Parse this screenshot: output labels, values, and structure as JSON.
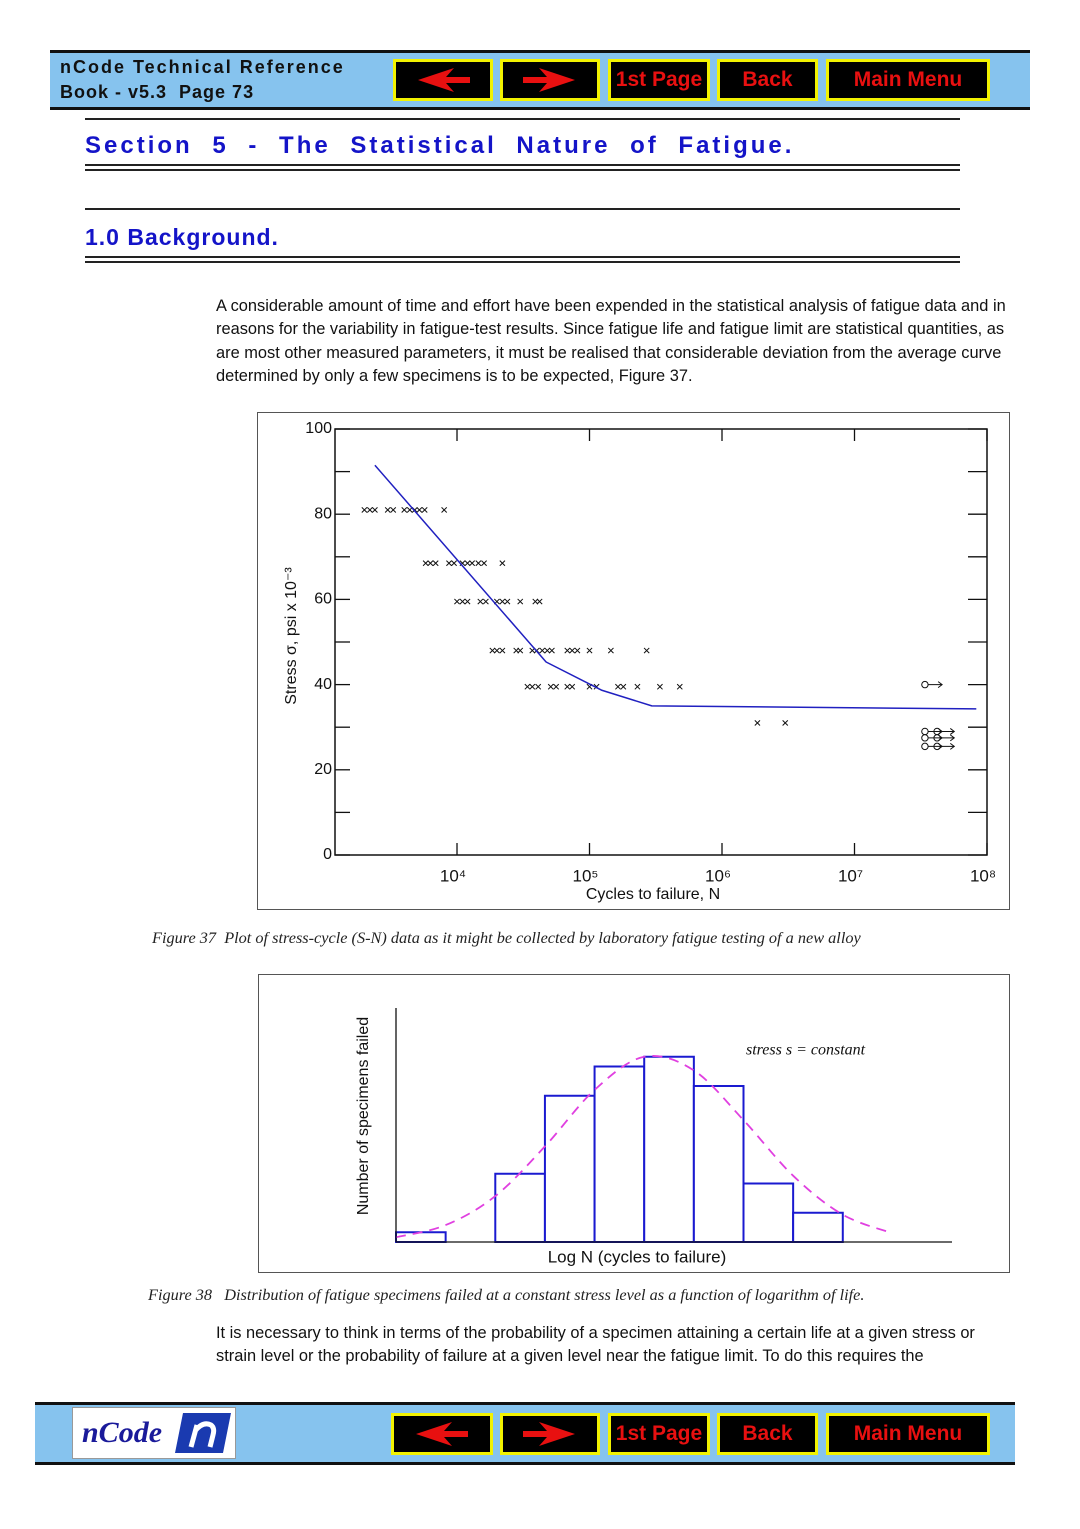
{
  "header": {
    "title": "nCode Technical Reference",
    "subtitle": "Book - v5.3  Page 73",
    "buttons": [
      "1st Page",
      "Back",
      "Main Menu"
    ]
  },
  "section_title": "Section 5 - The Statistical Nature of Fatigue.",
  "subsection_title": "1.0 Background.",
  "paragraphs": [
    "A considerable amount of time and effort have been expended in the statistical analysis of fatigue data and in reasons for the variability in fatigue-test results. Since fatigue life and fatigue limit are statistical quantities, as are most other measured parameters, it must be realised that considerable deviation from the average curve determined by only a few specimens is to be expected, Figure 37.",
    "It is necessary to think in terms of the probability of a specimen attaining a certain life at a given stress or strain level or the probability of failure at a given level near the fatigue limit. To do this requires the"
  ],
  "figures": [
    {
      "caption": "Figure 37  Plot of stress-cycle (S-N) data as it might be collected by laboratory fatigue testing of a new alloy"
    },
    {
      "caption": "Figure 38   Distribution of fatigue specimens failed at a constant stress level as a function of logarithm of life."
    }
  ],
  "footer": {
    "logo": "nCode",
    "buttons": [
      "1st Page",
      "Back",
      "Main Menu"
    ]
  },
  "chart_data": [
    {
      "type": "scatter",
      "x_label": "Cycles to failure, N",
      "y_label": "Stress σ, psi x 10⁻³",
      "xscale": "log",
      "xlim": [
        1200,
        100000000
      ],
      "ylim": [
        0,
        100
      ],
      "xticks": [
        {
          "value": 10000,
          "label": "10⁴"
        },
        {
          "value": 100000,
          "label": "10⁵"
        },
        {
          "value": 1000000,
          "label": "10⁶"
        },
        {
          "value": 10000000,
          "label": "10⁷"
        },
        {
          "value": 100000000,
          "label": "10⁸"
        }
      ],
      "yticks": [
        0,
        20,
        40,
        60,
        80,
        100
      ],
      "yminor": [
        10,
        30,
        50,
        70,
        90
      ],
      "series": [
        {
          "marker": "x",
          "color": "#111111",
          "x": [
            2000,
            2200,
            2400,
            3000,
            3300,
            4000,
            4400,
            4800,
            5200,
            5700,
            8000
          ],
          "values": [
            81,
            81,
            81,
            81,
            81,
            81,
            81,
            81,
            81,
            81,
            81
          ]
        },
        {
          "marker": "x",
          "color": "#111111",
          "x": [
            5800,
            6300,
            6900,
            8700,
            9500,
            11000,
            12000,
            13000,
            14500,
            16000,
            22000
          ],
          "values": [
            68.5,
            68.5,
            68.5,
            68.5,
            68.5,
            68.5,
            68.5,
            68.5,
            68.5,
            68.5,
            68.5
          ]
        },
        {
          "marker": "x",
          "color": "#111111",
          "x": [
            10000,
            11000,
            12000,
            15000,
            16500,
            20000,
            22000,
            24000,
            30000,
            39000,
            42000
          ],
          "values": [
            59.5,
            59.5,
            59.5,
            59.5,
            59.5,
            59.5,
            59.5,
            59.5,
            59.5,
            59.5,
            59.5
          ]
        },
        {
          "marker": "x",
          "color": "#111111",
          "x": [
            18500,
            20000,
            22000,
            28000,
            30000,
            37000,
            40000,
            44000,
            48000,
            52000,
            68000,
            74000,
            81000,
            100000,
            145000,
            270000
          ],
          "values": [
            48,
            48,
            48,
            48,
            48,
            48,
            48,
            48,
            48,
            48,
            48,
            48,
            48,
            48,
            48,
            48
          ]
        },
        {
          "marker": "x",
          "color": "#111111",
          "x": [
            34000,
            37000,
            41000,
            51000,
            56000,
            68000,
            74000,
            100000,
            113000,
            164000,
            180000,
            230000,
            340000,
            480000
          ],
          "values": [
            39.5,
            39.5,
            39.5,
            39.5,
            39.5,
            39.5,
            39.5,
            39.5,
            39.5,
            39.5,
            39.5,
            39.5,
            39.5,
            39.5
          ]
        },
        {
          "marker": "x",
          "color": "#111111",
          "x": [
            1850000,
            3000000
          ],
          "values": [
            31,
            31
          ]
        },
        {
          "marker": "runout",
          "color": "#111111",
          "x": [
            34000000,
            34000000,
            34000000,
            34000000,
            42000000,
            42000000,
            42000000
          ],
          "values": [
            40,
            29,
            27.5,
            25.5,
            29,
            27.5,
            25.5
          ]
        },
        {
          "type": "line",
          "color": "#2020c0",
          "x": [
            2400,
            47000,
            123000,
            295000,
            83000000
          ],
          "values": [
            91.5,
            45.3,
            38.7,
            35,
            34.3
          ]
        }
      ]
    },
    {
      "type": "histogram",
      "x_label": "Log N (cycles to failure)",
      "y_label": "Number of specimens failed",
      "annotation": "stress s = constant",
      "xlim": [
        0,
        11.2
      ],
      "ylim": [
        0,
        24
      ],
      "color": "#1a1ad0",
      "bins": [
        0,
        1,
        2,
        3,
        4,
        5,
        6,
        7,
        8,
        9
      ],
      "values": [
        1,
        0,
        7,
        15,
        18,
        19,
        16,
        6,
        3
      ],
      "curve": {
        "color": "#e040e0",
        "dashed": true,
        "x": [
          0,
          1,
          2,
          3,
          4,
          5,
          6,
          7,
          8,
          9,
          10
        ],
        "values": [
          0.49,
          1.73,
          4.71,
          9.8,
          15.6,
          19,
          17.6,
          12.5,
          6.8,
          2.8,
          0.9
        ]
      }
    }
  ]
}
